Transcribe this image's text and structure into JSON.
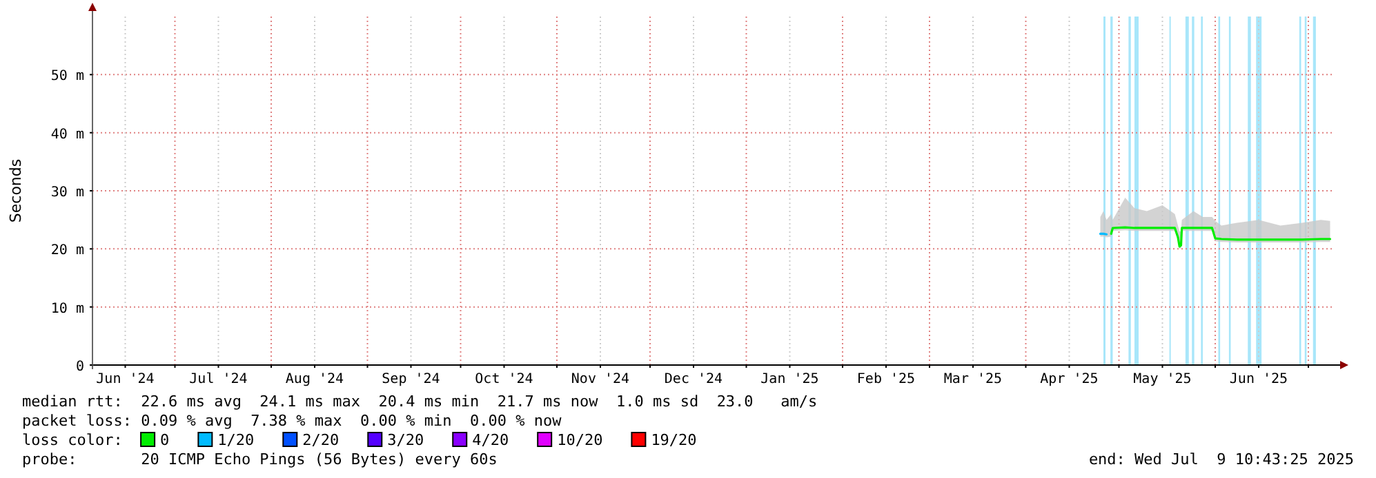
{
  "chart_data": {
    "type": "line",
    "ylabel": "Seconds",
    "legend_title": "loss color:",
    "legend": "bottom",
    "grid": true,
    "xlim": [
      "2024-06-04T10:43",
      "2025-07-09T10:43"
    ],
    "ylim": [
      0,
      60
    ],
    "yticks": [
      {
        "value": 0,
        "label": "0"
      },
      {
        "value": 10,
        "label": "10 m"
      },
      {
        "value": 20,
        "label": "20 m"
      },
      {
        "value": 30,
        "label": "30 m"
      },
      {
        "value": 40,
        "label": "40 m"
      },
      {
        "value": 50,
        "label": "50 m"
      }
    ],
    "xticks": [
      {
        "value": "2024-06-15",
        "label": "Jun '24"
      },
      {
        "value": "2024-07-01",
        "label": null
      },
      {
        "value": "2024-07-15",
        "label": "Jul '24"
      },
      {
        "value": "2024-08-01",
        "label": null
      },
      {
        "value": "2024-08-15",
        "label": "Aug '24"
      },
      {
        "value": "2024-09-01",
        "label": null
      },
      {
        "value": "2024-09-15",
        "label": "Sep '24"
      },
      {
        "value": "2024-10-01",
        "label": null
      },
      {
        "value": "2024-10-15",
        "label": "Oct '24"
      },
      {
        "value": "2024-11-01",
        "label": null
      },
      {
        "value": "2024-11-15",
        "label": "Nov '24"
      },
      {
        "value": "2024-12-01",
        "label": null
      },
      {
        "value": "2024-12-15",
        "label": "Dec '24"
      },
      {
        "value": "2025-01-01",
        "label": null
      },
      {
        "value": "2025-01-15",
        "label": "Jan '25"
      },
      {
        "value": "2025-02-01",
        "label": null
      },
      {
        "value": "2025-02-15",
        "label": "Feb '25"
      },
      {
        "value": "2025-03-01",
        "label": null
      },
      {
        "value": "2025-03-15",
        "label": "Mar '25"
      },
      {
        "value": "2025-04-01",
        "label": null
      },
      {
        "value": "2025-04-15",
        "label": "Apr '25"
      },
      {
        "value": "2025-05-01",
        "label": null
      },
      {
        "value": "2025-05-15",
        "label": "May '25"
      },
      {
        "value": "2025-06-01",
        "label": null
      },
      {
        "value": "2025-06-15",
        "label": "Jun '25"
      },
      {
        "value": "2025-07-01",
        "label": null
      }
    ],
    "series": [
      {
        "name": "0",
        "color": "#00ee00",
        "x": [
          "2025-04-25T00:00",
          "2025-04-26T00:00",
          "2025-04-27T00:00",
          "2025-04-28T12:00",
          "2025-04-29T00:00",
          "2025-05-03T00:00",
          "2025-05-06T00:00",
          "2025-05-10T00:00",
          "2025-05-15T00:00",
          "2025-05-19T00:00",
          "2025-05-20T00:00",
          "2025-05-20T12:00",
          "2025-05-21T00:00",
          "2025-05-21T06:00",
          "2025-05-25T00:00",
          "2025-05-28T00:00",
          "2025-05-31T00:00",
          "2025-06-01T00:00",
          "2025-06-03T00:00",
          "2025-06-08T00:00",
          "2025-06-15T00:00",
          "2025-06-22T00:00",
          "2025-06-29T00:00",
          "2025-07-05T00:00",
          "2025-07-08T00:00"
        ],
        "values": [
          null,
          null,
          null,
          22.6,
          23.6,
          23.7,
          23.6,
          23.6,
          23.6,
          23.6,
          22.0,
          20.4,
          20.6,
          23.6,
          23.6,
          23.6,
          23.6,
          21.8,
          21.7,
          21.6,
          21.6,
          21.6,
          21.6,
          21.7,
          21.7
        ],
        "lower": [
          22.1,
          22.1,
          22.0,
          22.1,
          23.1,
          23.2,
          23.1,
          23.1,
          23.1,
          23.1,
          21.5,
          20.0,
          20.1,
          23.1,
          23.1,
          23.1,
          23.1,
          21.3,
          21.2,
          21.1,
          21.1,
          21.1,
          21.1,
          21.2,
          21.2
        ],
        "upper": [
          25.5,
          26.5,
          25.0,
          26.0,
          25.0,
          28.8,
          27.0,
          26.5,
          27.5,
          26.0,
          24.0,
          23.0,
          23.0,
          25.0,
          26.5,
          25.5,
          25.5,
          24.8,
          24.0,
          24.5,
          25.0,
          24.0,
          24.5,
          25.0,
          24.8
        ]
      },
      {
        "name": "1/20",
        "color": "#00bbff",
        "x": [
          "2025-04-25T00:00",
          "2025-04-26T00:00",
          "2025-04-27T00:00"
        ],
        "values": [
          22.6,
          22.6,
          22.5
        ]
      },
      {
        "name": "2/20",
        "color": "#0050ff"
      },
      {
        "name": "3/20",
        "color": "#5500ff"
      },
      {
        "name": "4/20",
        "color": "#8a00ff"
      },
      {
        "name": "10/20",
        "color": "#e000ff"
      },
      {
        "name": "19/20",
        "color": "#ff0000"
      }
    ],
    "bands": [
      {
        "axis": "x",
        "from": "2025-04-26T00:00",
        "to": "2025-04-26T16:00",
        "color": "#a8e6fa"
      },
      {
        "axis": "x",
        "from": "2025-04-28T06:00",
        "to": "2025-04-29T00:00",
        "color": "#a8e6fa"
      },
      {
        "axis": "x",
        "from": "2025-05-04T02:00",
        "to": "2025-05-04T20:00",
        "color": "#a8e6fa"
      },
      {
        "axis": "x",
        "from": "2025-05-06T00:00",
        "to": "2025-05-07T08:00",
        "color": "#a8e6fa"
      },
      {
        "axis": "x",
        "from": "2025-05-17T06:00",
        "to": "2025-05-17T16:00",
        "color": "#a8e6fa"
      },
      {
        "axis": "x",
        "from": "2025-05-22T10:00",
        "to": "2025-05-23T12:00",
        "color": "#a8e6fa"
      },
      {
        "axis": "x",
        "from": "2025-05-24T12:00",
        "to": "2025-05-25T06:00",
        "color": "#a8e6fa"
      },
      {
        "axis": "x",
        "from": "2025-05-27T10:00",
        "to": "2025-05-28T00:00",
        "color": "#a8e6fa"
      },
      {
        "axis": "x",
        "from": "2025-06-02T00:00",
        "to": "2025-06-02T14:00",
        "color": "#a8e6fa"
      },
      {
        "axis": "x",
        "from": "2025-06-05T10:00",
        "to": "2025-06-06T00:00",
        "color": "#a8e6fa"
      },
      {
        "axis": "x",
        "from": "2025-06-11T12:00",
        "to": "2025-06-12T12:00",
        "color": "#a8e6fa"
      },
      {
        "axis": "x",
        "from": "2025-06-14T04:00",
        "to": "2025-06-15T22:00",
        "color": "#a8e6fa"
      },
      {
        "axis": "x",
        "from": "2025-06-28T02:00",
        "to": "2025-06-28T16:00",
        "color": "#a8e6fa"
      },
      {
        "axis": "x",
        "from": "2025-06-29T20:00",
        "to": "2025-06-30T10:00",
        "color": "#a8e6fa"
      },
      {
        "axis": "x",
        "from": "2025-07-02T12:00",
        "to": "2025-07-03T10:00",
        "color": "#a8e6fa"
      }
    ],
    "annotations": [
      "median rtt:  22.6 ms avg  24.1 ms max  20.4 ms min  21.7 ms now  1.0 ms sd  23.0   am/s",
      "packet loss: 0.09 % avg  7.38 % max  0.00 % min  0.00 % now",
      "probe:       20 ICMP Echo Pings (56 Bytes) every 60s",
      "end: Wed Jul  9 10:43:25 2025"
    ]
  }
}
